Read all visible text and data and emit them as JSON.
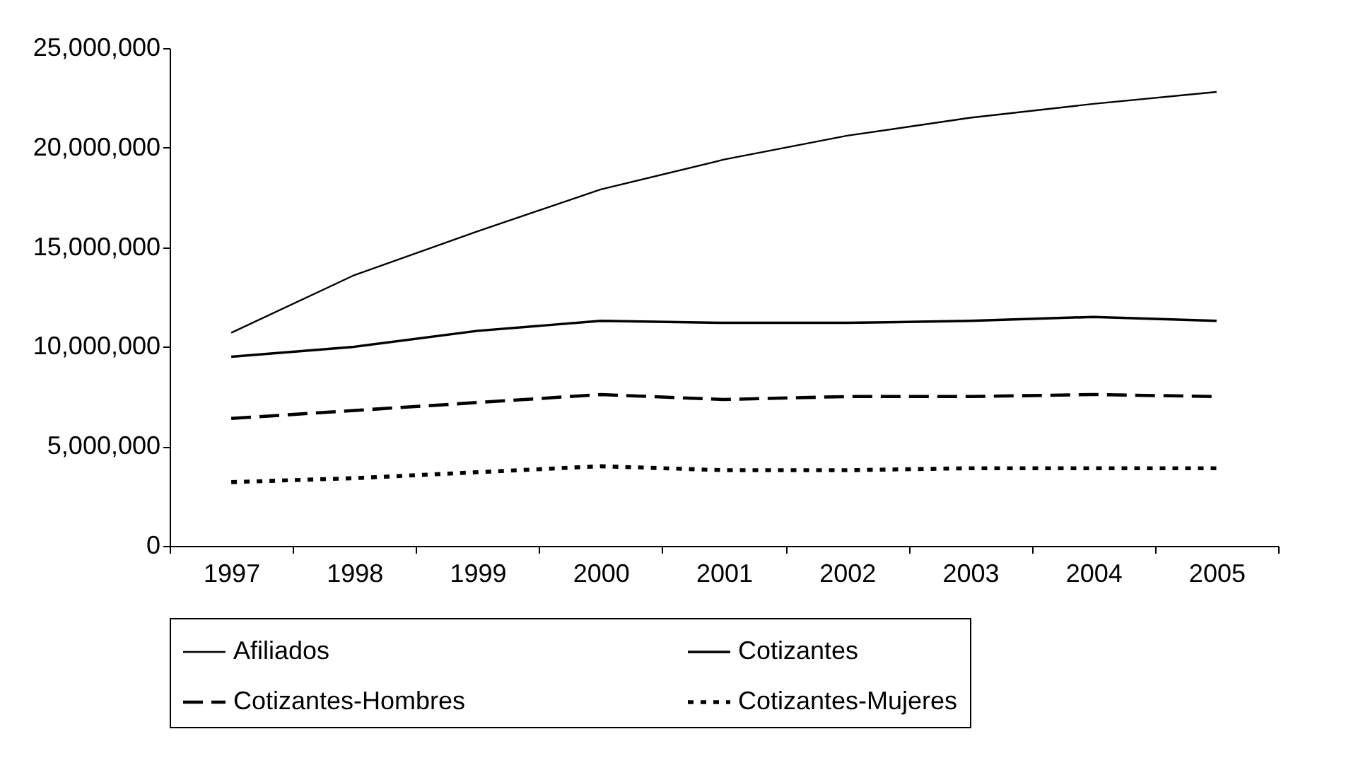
{
  "chart_data": {
    "type": "line",
    "categories": [
      "1997",
      "1998",
      "1999",
      "2000",
      "2001",
      "2002",
      "2003",
      "2004",
      "2005"
    ],
    "series": [
      {
        "name": "Afiliados",
        "color": "#000000",
        "line_style": "solid",
        "values": [
          10700000,
          13600000,
          15800000,
          17900000,
          19400000,
          20600000,
          21500000,
          22200000,
          22800000
        ]
      },
      {
        "name": "Cotizantes",
        "color": "#000000",
        "line_style": "solid",
        "values": [
          9500000,
          10000000,
          10800000,
          11300000,
          11200000,
          11200000,
          11300000,
          11500000,
          11300000
        ]
      },
      {
        "name": "Cotizantes-Hombres",
        "color": "#000000",
        "line_style": "dashed",
        "values": [
          6400000,
          6800000,
          7200000,
          7600000,
          7350000,
          7500000,
          7500000,
          7600000,
          7500000
        ]
      },
      {
        "name": "Cotizantes-Mujeres",
        "color": "#000000",
        "line_style": "dotted",
        "values": [
          3200000,
          3400000,
          3700000,
          4000000,
          3800000,
          3800000,
          3900000,
          3900000,
          3900000
        ]
      }
    ],
    "ylim": [
      0,
      25000000
    ],
    "yticks": [
      0,
      {
        "value": 5000000,
        "label": "5,000,000"
      },
      {
        "value": 10000000,
        "label": "10,000,000"
      },
      {
        "value": 15000000,
        "label": "15,000,000"
      },
      {
        "value": 20000000,
        "label": "20,000,000"
      },
      {
        "value": 25000000,
        "label": "25,000,000"
      }
    ],
    "grid": false,
    "legend": "bottom"
  }
}
